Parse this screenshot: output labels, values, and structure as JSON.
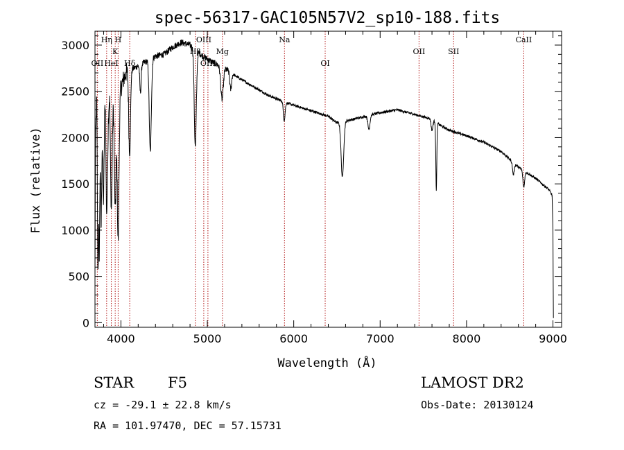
{
  "chart_data": {
    "type": "line",
    "title": "spec-56317-GAC105N57V2_sp10-188.fits",
    "xlabel": "Wavelength (Å)",
    "ylabel": "Flux (relative)",
    "xlim": [
      3700,
      9100
    ],
    "ylim": [
      -50,
      3150
    ],
    "x_ticks": [
      4000,
      5000,
      6000,
      7000,
      8000,
      9000
    ],
    "y_ticks": [
      0,
      500,
      1000,
      1500,
      2000,
      2500,
      3000
    ],
    "x_tick_labels": [
      "4000",
      "5000",
      "6000",
      "7000",
      "8000",
      "9000"
    ],
    "y_tick_labels": [
      "0",
      "500",
      "1000",
      "1500",
      "2000",
      "2500",
      "3000"
    ],
    "grid": false,
    "continuum": [
      [
        3700,
        500
      ],
      [
        3705,
        1900
      ],
      [
        3720,
        2500
      ],
      [
        3750,
        2300
      ],
      [
        3780,
        2200
      ],
      [
        3820,
        2500
      ],
      [
        3850,
        2100
      ],
      [
        3870,
        2600
      ],
      [
        3900,
        2500
      ],
      [
        3950,
        2400
      ],
      [
        3990,
        2500
      ],
      [
        4020,
        2600
      ],
      [
        4060,
        2700
      ],
      [
        4150,
        2750
      ],
      [
        4250,
        2800
      ],
      [
        4400,
        2880
      ],
      [
        4500,
        2900
      ],
      [
        4600,
        2980
      ],
      [
        4700,
        3030
      ],
      [
        4800,
        3000
      ],
      [
        4860,
        2950
      ],
      [
        4950,
        2880
      ],
      [
        5050,
        2820
      ],
      [
        5200,
        2750
      ],
      [
        5300,
        2680
      ],
      [
        5500,
        2570
      ],
      [
        5700,
        2460
      ],
      [
        5900,
        2380
      ],
      [
        6100,
        2320
      ],
      [
        6300,
        2260
      ],
      [
        6400,
        2230
      ],
      [
        6500,
        2160
      ],
      [
        6700,
        2200
      ],
      [
        7000,
        2270
      ],
      [
        7200,
        2300
      ],
      [
        7400,
        2250
      ],
      [
        7600,
        2200
      ],
      [
        7700,
        2130
      ],
      [
        7800,
        2080
      ],
      [
        8000,
        2020
      ],
      [
        8200,
        1950
      ],
      [
        8400,
        1850
      ],
      [
        8600,
        1680
      ],
      [
        8800,
        1560
      ],
      [
        8950,
        1440
      ],
      [
        8990,
        1380
      ],
      [
        9000,
        1000
      ],
      [
        9005,
        50
      ]
    ],
    "absorption": [
      {
        "x": 3734,
        "depth": 1800,
        "width": 6
      },
      {
        "x": 3750,
        "depth": 1500,
        "width": 6
      },
      {
        "x": 3771,
        "depth": 1200,
        "width": 6
      },
      {
        "x": 3798,
        "depth": 1000,
        "width": 8
      },
      {
        "x": 3835,
        "depth": 1100,
        "width": 8
      },
      {
        "x": 3889,
        "depth": 1300,
        "width": 10
      },
      {
        "x": 3934,
        "depth": 1200,
        "width": 10
      },
      {
        "x": 3968,
        "depth": 1550,
        "width": 10
      },
      {
        "x": 4101,
        "depth": 900,
        "width": 10
      },
      {
        "x": 4226,
        "depth": 300,
        "width": 8
      },
      {
        "x": 4340,
        "depth": 1000,
        "width": 12
      },
      {
        "x": 4861,
        "depth": 1050,
        "width": 12
      },
      {
        "x": 5170,
        "depth": 350,
        "width": 15
      },
      {
        "x": 5270,
        "depth": 180,
        "width": 10
      },
      {
        "x": 5890,
        "depth": 200,
        "width": 10
      },
      {
        "x": 6563,
        "depth": 600,
        "width": 15
      },
      {
        "x": 6870,
        "depth": 150,
        "width": 12
      },
      {
        "x": 7600,
        "depth": 120,
        "width": 10
      },
      {
        "x": 7650,
        "depth": 730,
        "width": 6
      },
      {
        "x": 8542,
        "depth": 130,
        "width": 10
      },
      {
        "x": 8662,
        "depth": 180,
        "width": 10
      }
    ],
    "reference_lines": [
      {
        "x": 3727,
        "label": "OII",
        "label_row": 3
      },
      {
        "x": 3835,
        "label": "Hη",
        "label_row": 1
      },
      {
        "x": 3889,
        "label": "HeI",
        "label_row": 3
      },
      {
        "x": 3934,
        "label": "K",
        "label_row": 2
      },
      {
        "x": 3968,
        "label": "H",
        "label_row": 1
      },
      {
        "x": 4102,
        "label": "Hδ",
        "label_row": 3
      },
      {
        "x": 4861,
        "label": "Hβ",
        "label_row": 2
      },
      {
        "x": 4959,
        "label": "OIII",
        "label_row": 1
      },
      {
        "x": 5007,
        "label": "OIII",
        "label_row": 3
      },
      {
        "x": 5175,
        "label": "Mg",
        "label_row": 2
      },
      {
        "x": 5893,
        "label": "Na",
        "label_row": 1
      },
      {
        "x": 6364,
        "label": "OI",
        "label_row": 3
      },
      {
        "x": 7450,
        "label": "OII",
        "label_row": 2
      },
      {
        "x": 7850,
        "label": "SII",
        "label_row": 2
      },
      {
        "x": 8662,
        "label": "CaII",
        "label_row": 1
      }
    ],
    "colors": {
      "spectrum": "#000000",
      "reference_line": "#b01010",
      "axes": "#000000"
    }
  },
  "info": {
    "object_class": "STAR",
    "subclass": "F5",
    "survey": "LAMOST DR2",
    "redshift": "cz = -29.1 ± 22.8 km/s",
    "obs_date": "Obs-Date: 20130124",
    "coords": "RA = 101.97470, DEC =  57.15731"
  }
}
